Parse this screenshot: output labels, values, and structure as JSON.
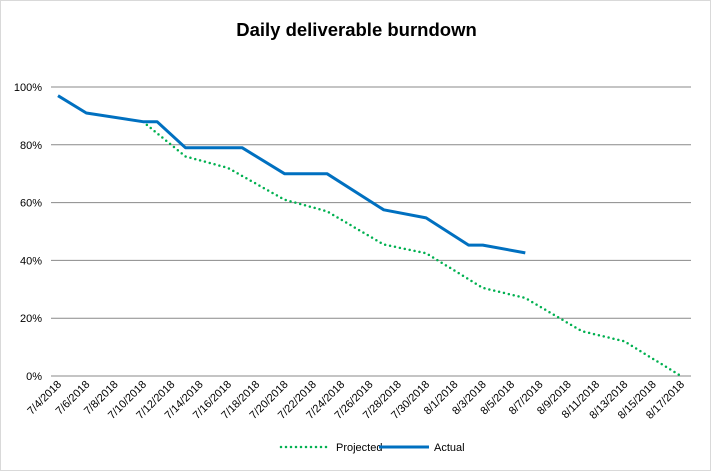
{
  "chart_data": {
    "type": "line",
    "title": "Daily deliverable burndown",
    "xlabel": "",
    "ylabel": "",
    "ylim": [
      0,
      100
    ],
    "y_ticks": [
      "0%",
      "20%",
      "40%",
      "60%",
      "80%",
      "100%"
    ],
    "y_tick_values": [
      0,
      20,
      40,
      60,
      80,
      100
    ],
    "x_range": [
      "7/4/2018",
      "8/17/2018"
    ],
    "x_ticks": [
      "7/4/2018",
      "7/6/2018",
      "7/8/2018",
      "7/10/2018",
      "7/12/2018",
      "7/14/2018",
      "7/16/2018",
      "7/18/2018",
      "7/20/2018",
      "7/22/2018",
      "7/24/2018",
      "7/26/2018",
      "7/28/2018",
      "7/30/2018",
      "8/1/2018",
      "8/3/2018",
      "8/5/2018",
      "8/7/2018",
      "8/9/2018",
      "8/11/2018",
      "8/13/2018",
      "8/15/2018",
      "8/17/2018"
    ],
    "grid": true,
    "legend": {
      "position": "bottom",
      "entries": [
        "Projected",
        "Actual"
      ]
    },
    "series": [
      {
        "name": "Projected",
        "color": "#00B050",
        "style": "dotted",
        "x": [
          "7/10/2018",
          "7/13/2018",
          "7/16/2018",
          "7/20/2018",
          "7/23/2018",
          "7/27/2018",
          "7/30/2018",
          "8/3/2018",
          "8/6/2018",
          "8/10/2018",
          "8/13/2018",
          "8/17/2018"
        ],
        "values": [
          88,
          76,
          72,
          61,
          57,
          45.5,
          42.5,
          30.5,
          27,
          15.5,
          12,
          0
        ]
      },
      {
        "name": "Actual",
        "color": "#0070C0",
        "style": "solid",
        "x": [
          "7/4/2018",
          "7/6/2018",
          "7/10/2018",
          "7/11/2018",
          "7/13/2018",
          "7/17/2018",
          "7/20/2018",
          "7/23/2018",
          "7/27/2018",
          "7/30/2018",
          "8/2/2018",
          "8/3/2018",
          "8/6/2018"
        ],
        "values": [
          97,
          91,
          88,
          88,
          79,
          79,
          70,
          70,
          57.5,
          54.7,
          45.3,
          45.3,
          42.6
        ]
      }
    ]
  }
}
